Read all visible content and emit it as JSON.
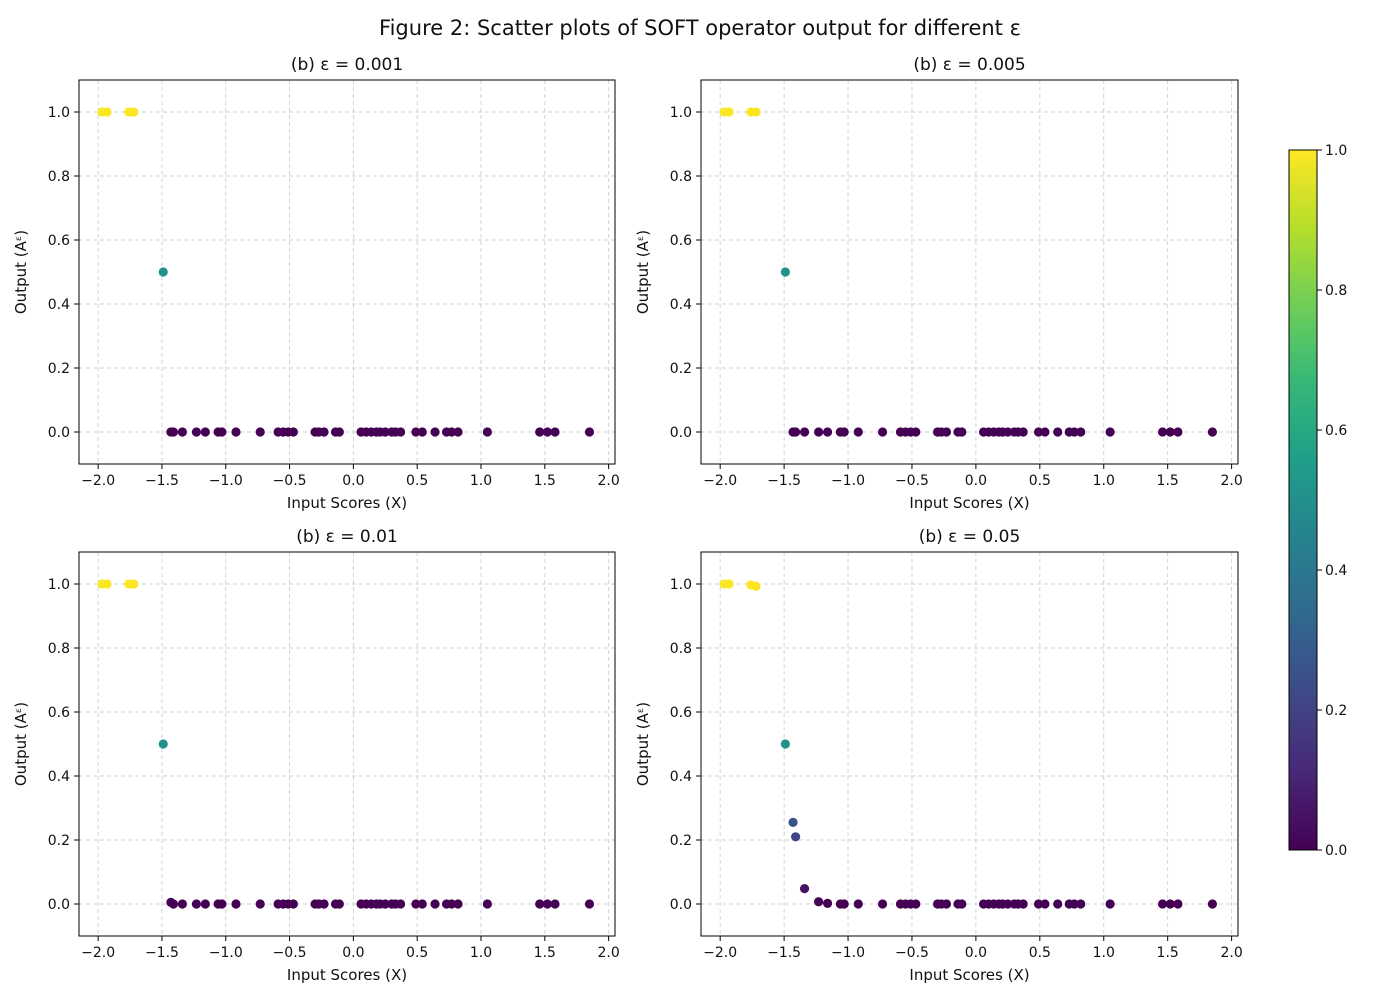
{
  "figure_title": "Figure 2: Scatter plots of SOFT operator output for different ε",
  "colormap": {
    "name": "viridis",
    "stops": [
      "#440154",
      "#482878",
      "#3e4989",
      "#31688e",
      "#26828e",
      "#1f9e89",
      "#35b779",
      "#6ece58",
      "#b5de2b",
      "#fde725"
    ],
    "ticks": [
      "0.0",
      "0.2",
      "0.4",
      "0.6",
      "0.8",
      "1.0"
    ],
    "range": [
      0,
      1
    ]
  },
  "chart_data": [
    {
      "type": "scatter",
      "title": "(b) ε = 0.001",
      "xlabel": "Input Scores (X)",
      "ylabel": "Output (Aᵋ)",
      "xlim": [
        -2.15,
        2.05
      ],
      "ylim": [
        -0.1,
        1.1
      ],
      "xticks": [
        -2.0,
        -1.5,
        -1.0,
        -0.5,
        0.0,
        0.5,
        1.0,
        1.5,
        2.0
      ],
      "xtick_labels": [
        "−2.0",
        "−1.5",
        "−1.0",
        "−0.5",
        "0.0",
        "0.5",
        "1.0",
        "1.5",
        "2.0"
      ],
      "yticks": [
        0.0,
        0.2,
        0.4,
        0.6,
        0.8,
        1.0
      ],
      "ytick_labels": [
        "0.0",
        "0.2",
        "0.4",
        "0.6",
        "0.8",
        "1.0"
      ],
      "grid": true,
      "points": [
        {
          "x": -1.97,
          "y": 1.0
        },
        {
          "x": -1.93,
          "y": 1.0
        },
        {
          "x": -1.76,
          "y": 1.0
        },
        {
          "x": -1.72,
          "y": 1.0
        },
        {
          "x": -1.49,
          "y": 0.5
        },
        {
          "x": -1.43,
          "y": 0.0
        },
        {
          "x": -1.41,
          "y": 0.0
        },
        {
          "x": -1.34,
          "y": 0.0
        },
        {
          "x": -1.23,
          "y": 0.0
        },
        {
          "x": -1.16,
          "y": 0.0
        },
        {
          "x": -1.06,
          "y": 0.0
        },
        {
          "x": -1.03,
          "y": 0.0
        },
        {
          "x": -0.92,
          "y": 0.0
        },
        {
          "x": -0.73,
          "y": 0.0
        },
        {
          "x": -0.59,
          "y": 0.0
        },
        {
          "x": -0.55,
          "y": 0.0
        },
        {
          "x": -0.51,
          "y": 0.0
        },
        {
          "x": -0.47,
          "y": 0.0
        },
        {
          "x": -0.3,
          "y": 0.0
        },
        {
          "x": -0.27,
          "y": 0.0
        },
        {
          "x": -0.23,
          "y": 0.0
        },
        {
          "x": -0.14,
          "y": 0.0
        },
        {
          "x": -0.11,
          "y": 0.0
        },
        {
          "x": 0.06,
          "y": 0.0
        },
        {
          "x": 0.1,
          "y": 0.0
        },
        {
          "x": 0.14,
          "y": 0.0
        },
        {
          "x": 0.18,
          "y": 0.0
        },
        {
          "x": 0.21,
          "y": 0.0
        },
        {
          "x": 0.25,
          "y": 0.0
        },
        {
          "x": 0.3,
          "y": 0.0
        },
        {
          "x": 0.33,
          "y": 0.0
        },
        {
          "x": 0.37,
          "y": 0.0
        },
        {
          "x": 0.49,
          "y": 0.0
        },
        {
          "x": 0.54,
          "y": 0.0
        },
        {
          "x": 0.64,
          "y": 0.0
        },
        {
          "x": 0.73,
          "y": 0.0
        },
        {
          "x": 0.77,
          "y": 0.0
        },
        {
          "x": 0.82,
          "y": 0.0
        },
        {
          "x": 1.05,
          "y": 0.0
        },
        {
          "x": 1.46,
          "y": 0.0
        },
        {
          "x": 1.52,
          "y": 0.0
        },
        {
          "x": 1.58,
          "y": 0.0
        },
        {
          "x": 1.85,
          "y": 0.0
        }
      ]
    },
    {
      "type": "scatter",
      "title": "(b) ε = 0.005",
      "xlabel": "Input Scores (X)",
      "ylabel": "Output (Aᵋ)",
      "xlim": [
        -2.15,
        2.05
      ],
      "ylim": [
        -0.1,
        1.1
      ],
      "xticks": [
        -2.0,
        -1.5,
        -1.0,
        -0.5,
        0.0,
        0.5,
        1.0,
        1.5,
        2.0
      ],
      "xtick_labels": [
        "−2.0",
        "−1.5",
        "−1.0",
        "−0.5",
        "0.0",
        "0.5",
        "1.0",
        "1.5",
        "2.0"
      ],
      "yticks": [
        0.0,
        0.2,
        0.4,
        0.6,
        0.8,
        1.0
      ],
      "ytick_labels": [
        "0.0",
        "0.2",
        "0.4",
        "0.6",
        "0.8",
        "1.0"
      ],
      "grid": true,
      "points": [
        {
          "x": -1.97,
          "y": 1.0
        },
        {
          "x": -1.93,
          "y": 1.0
        },
        {
          "x": -1.76,
          "y": 1.0
        },
        {
          "x": -1.72,
          "y": 1.0
        },
        {
          "x": -1.49,
          "y": 0.5
        },
        {
          "x": -1.43,
          "y": 0.0
        },
        {
          "x": -1.41,
          "y": 0.0
        },
        {
          "x": -1.34,
          "y": 0.0
        },
        {
          "x": -1.23,
          "y": 0.0
        },
        {
          "x": -1.16,
          "y": 0.0
        },
        {
          "x": -1.06,
          "y": 0.0
        },
        {
          "x": -1.03,
          "y": 0.0
        },
        {
          "x": -0.92,
          "y": 0.0
        },
        {
          "x": -0.73,
          "y": 0.0
        },
        {
          "x": -0.59,
          "y": 0.0
        },
        {
          "x": -0.55,
          "y": 0.0
        },
        {
          "x": -0.51,
          "y": 0.0
        },
        {
          "x": -0.47,
          "y": 0.0
        },
        {
          "x": -0.3,
          "y": 0.0
        },
        {
          "x": -0.27,
          "y": 0.0
        },
        {
          "x": -0.23,
          "y": 0.0
        },
        {
          "x": -0.14,
          "y": 0.0
        },
        {
          "x": -0.11,
          "y": 0.0
        },
        {
          "x": 0.06,
          "y": 0.0
        },
        {
          "x": 0.1,
          "y": 0.0
        },
        {
          "x": 0.14,
          "y": 0.0
        },
        {
          "x": 0.18,
          "y": 0.0
        },
        {
          "x": 0.21,
          "y": 0.0
        },
        {
          "x": 0.25,
          "y": 0.0
        },
        {
          "x": 0.3,
          "y": 0.0
        },
        {
          "x": 0.33,
          "y": 0.0
        },
        {
          "x": 0.37,
          "y": 0.0
        },
        {
          "x": 0.49,
          "y": 0.0
        },
        {
          "x": 0.54,
          "y": 0.0
        },
        {
          "x": 0.64,
          "y": 0.0
        },
        {
          "x": 0.73,
          "y": 0.0
        },
        {
          "x": 0.77,
          "y": 0.0
        },
        {
          "x": 0.82,
          "y": 0.0
        },
        {
          "x": 1.05,
          "y": 0.0
        },
        {
          "x": 1.46,
          "y": 0.0
        },
        {
          "x": 1.52,
          "y": 0.0
        },
        {
          "x": 1.58,
          "y": 0.0
        },
        {
          "x": 1.85,
          "y": 0.0
        }
      ]
    },
    {
      "type": "scatter",
      "title": "(b) ε = 0.01",
      "xlabel": "Input Scores (X)",
      "ylabel": "Output (Aᵋ)",
      "xlim": [
        -2.15,
        2.05
      ],
      "ylim": [
        -0.1,
        1.1
      ],
      "xticks": [
        -2.0,
        -1.5,
        -1.0,
        -0.5,
        0.0,
        0.5,
        1.0,
        1.5,
        2.0
      ],
      "xtick_labels": [
        "−2.0",
        "−1.5",
        "−1.0",
        "−0.5",
        "0.0",
        "0.5",
        "1.0",
        "1.5",
        "2.0"
      ],
      "yticks": [
        0.0,
        0.2,
        0.4,
        0.6,
        0.8,
        1.0
      ],
      "ytick_labels": [
        "0.0",
        "0.2",
        "0.4",
        "0.6",
        "0.8",
        "1.0"
      ],
      "grid": true,
      "points": [
        {
          "x": -1.97,
          "y": 1.0
        },
        {
          "x": -1.93,
          "y": 1.0
        },
        {
          "x": -1.76,
          "y": 1.0
        },
        {
          "x": -1.72,
          "y": 1.0
        },
        {
          "x": -1.49,
          "y": 0.5
        },
        {
          "x": -1.43,
          "y": 0.005
        },
        {
          "x": -1.41,
          "y": 0.0
        },
        {
          "x": -1.34,
          "y": 0.0
        },
        {
          "x": -1.23,
          "y": 0.0
        },
        {
          "x": -1.16,
          "y": 0.0
        },
        {
          "x": -1.06,
          "y": 0.0
        },
        {
          "x": -1.03,
          "y": 0.0
        },
        {
          "x": -0.92,
          "y": 0.0
        },
        {
          "x": -0.73,
          "y": 0.0
        },
        {
          "x": -0.59,
          "y": 0.0
        },
        {
          "x": -0.55,
          "y": 0.0
        },
        {
          "x": -0.51,
          "y": 0.0
        },
        {
          "x": -0.47,
          "y": 0.0
        },
        {
          "x": -0.3,
          "y": 0.0
        },
        {
          "x": -0.27,
          "y": 0.0
        },
        {
          "x": -0.23,
          "y": 0.0
        },
        {
          "x": -0.14,
          "y": 0.0
        },
        {
          "x": -0.11,
          "y": 0.0
        },
        {
          "x": 0.06,
          "y": 0.0
        },
        {
          "x": 0.1,
          "y": 0.0
        },
        {
          "x": 0.14,
          "y": 0.0
        },
        {
          "x": 0.18,
          "y": 0.0
        },
        {
          "x": 0.21,
          "y": 0.0
        },
        {
          "x": 0.25,
          "y": 0.0
        },
        {
          "x": 0.3,
          "y": 0.0
        },
        {
          "x": 0.33,
          "y": 0.0
        },
        {
          "x": 0.37,
          "y": 0.0
        },
        {
          "x": 0.49,
          "y": 0.0
        },
        {
          "x": 0.54,
          "y": 0.0
        },
        {
          "x": 0.64,
          "y": 0.0
        },
        {
          "x": 0.73,
          "y": 0.0
        },
        {
          "x": 0.77,
          "y": 0.0
        },
        {
          "x": 0.82,
          "y": 0.0
        },
        {
          "x": 1.05,
          "y": 0.0
        },
        {
          "x": 1.46,
          "y": 0.0
        },
        {
          "x": 1.52,
          "y": 0.0
        },
        {
          "x": 1.58,
          "y": 0.0
        },
        {
          "x": 1.85,
          "y": 0.0
        }
      ]
    },
    {
      "type": "scatter",
      "title": "(b) ε = 0.05",
      "xlabel": "Input Scores (X)",
      "ylabel": "Output (Aᵋ)",
      "xlim": [
        -2.15,
        2.05
      ],
      "ylim": [
        -0.1,
        1.1
      ],
      "xticks": [
        -2.0,
        -1.5,
        -1.0,
        -0.5,
        0.0,
        0.5,
        1.0,
        1.5,
        2.0
      ],
      "xtick_labels": [
        "−2.0",
        "−1.5",
        "−1.0",
        "−0.5",
        "0.0",
        "0.5",
        "1.0",
        "1.5",
        "2.0"
      ],
      "yticks": [
        0.0,
        0.2,
        0.4,
        0.6,
        0.8,
        1.0
      ],
      "ytick_labels": [
        "0.0",
        "0.2",
        "0.4",
        "0.6",
        "0.8",
        "1.0"
      ],
      "grid": true,
      "points": [
        {
          "x": -1.97,
          "y": 1.0
        },
        {
          "x": -1.93,
          "y": 1.0
        },
        {
          "x": -1.76,
          "y": 0.997
        },
        {
          "x": -1.72,
          "y": 0.993
        },
        {
          "x": -1.49,
          "y": 0.5
        },
        {
          "x": -1.43,
          "y": 0.255
        },
        {
          "x": -1.41,
          "y": 0.21
        },
        {
          "x": -1.34,
          "y": 0.048
        },
        {
          "x": -1.23,
          "y": 0.007
        },
        {
          "x": -1.16,
          "y": 0.002
        },
        {
          "x": -1.06,
          "y": 0.0
        },
        {
          "x": -1.03,
          "y": 0.0
        },
        {
          "x": -0.92,
          "y": 0.0
        },
        {
          "x": -0.73,
          "y": 0.0
        },
        {
          "x": -0.59,
          "y": 0.0
        },
        {
          "x": -0.55,
          "y": 0.0
        },
        {
          "x": -0.51,
          "y": 0.0
        },
        {
          "x": -0.47,
          "y": 0.0
        },
        {
          "x": -0.3,
          "y": 0.0
        },
        {
          "x": -0.27,
          "y": 0.0
        },
        {
          "x": -0.23,
          "y": 0.0
        },
        {
          "x": -0.14,
          "y": 0.0
        },
        {
          "x": -0.11,
          "y": 0.0
        },
        {
          "x": 0.06,
          "y": 0.0
        },
        {
          "x": 0.1,
          "y": 0.0
        },
        {
          "x": 0.14,
          "y": 0.0
        },
        {
          "x": 0.18,
          "y": 0.0
        },
        {
          "x": 0.21,
          "y": 0.0
        },
        {
          "x": 0.25,
          "y": 0.0
        },
        {
          "x": 0.3,
          "y": 0.0
        },
        {
          "x": 0.33,
          "y": 0.0
        },
        {
          "x": 0.37,
          "y": 0.0
        },
        {
          "x": 0.49,
          "y": 0.0
        },
        {
          "x": 0.54,
          "y": 0.0
        },
        {
          "x": 0.64,
          "y": 0.0
        },
        {
          "x": 0.73,
          "y": 0.0
        },
        {
          "x": 0.77,
          "y": 0.0
        },
        {
          "x": 0.82,
          "y": 0.0
        },
        {
          "x": 1.05,
          "y": 0.0
        },
        {
          "x": 1.46,
          "y": 0.0
        },
        {
          "x": 1.52,
          "y": 0.0
        },
        {
          "x": 1.58,
          "y": 0.0
        },
        {
          "x": 1.85,
          "y": 0.0
        }
      ]
    }
  ]
}
